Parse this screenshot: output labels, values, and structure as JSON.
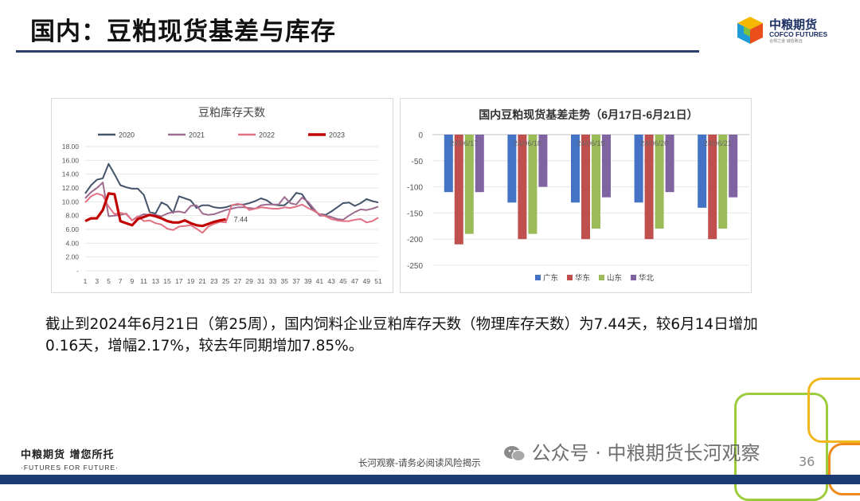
{
  "header": {
    "title": "国内：豆粕现货基差与库存",
    "logo_cn": "中粮期货",
    "logo_en": "COFCO FUTURES",
    "logo_sub": "合规之道  诚信致远"
  },
  "chart_data": [
    {
      "type": "line",
      "title": "豆粕库存天数",
      "xlabel": "",
      "ylabel": "",
      "ylim": [
        0,
        18
      ],
      "y_ticks": [
        "-",
        "2.00",
        "4.00",
        "6.00",
        "8.00",
        "10.00",
        "12.00",
        "14.00",
        "16.00",
        "18.00"
      ],
      "x_ticks": [
        "1",
        "3",
        "5",
        "7",
        "9",
        "11",
        "13",
        "15",
        "17",
        "19",
        "21",
        "23",
        "25",
        "27",
        "29",
        "31",
        "33",
        "35",
        "37",
        "39",
        "41",
        "43",
        "45",
        "47",
        "49",
        "51"
      ],
      "grid": true,
      "legend_position": "top",
      "annotation": "7.44",
      "series": [
        {
          "name": "2020",
          "color": "#44546a",
          "values": [
            11.2,
            12.4,
            13.2,
            13.4,
            15.5,
            14.0,
            12.4,
            12.1,
            11.9,
            11.9,
            11.0,
            8.5,
            8.3,
            9.9,
            9.5,
            8.4,
            10.8,
            10.5,
            10.2,
            9.1,
            9.5,
            9.5,
            9.2,
            9.1,
            9.2,
            9.5,
            9.6,
            9.6,
            9.8,
            10.1,
            10.5,
            10.2,
            9.6,
            9.5,
            9.5,
            10.2,
            11.3,
            11.1,
            9.8,
            8.7,
            8.2,
            8.1,
            8.6,
            9.2,
            9.8,
            9.9,
            9.4,
            9.8,
            10.4,
            10.1,
            9.9
          ]
        },
        {
          "name": "2021",
          "color": "#9e6b8f",
          "values": [
            10.5,
            11.4,
            12.0,
            12.8,
            7.9,
            8.0,
            8.1,
            8.3,
            7.3,
            7.8,
            8.2,
            8.1,
            8.1,
            7.9,
            8.3,
            8.5,
            8.6,
            8.4,
            9.4,
            9.5,
            8.3,
            8.1,
            8.2,
            8.5,
            8.8,
            9.0,
            9.2,
            9.2,
            9.1,
            9.0,
            9.5,
            9.6,
            9.6,
            9.6,
            10.7,
            9.8,
            9.6,
            10.6,
            10.0,
            9.0,
            8.0,
            8.0,
            7.8,
            7.5,
            7.4,
            8.0,
            8.5,
            8.9,
            8.8,
            9.0,
            9.3
          ]
        },
        {
          "name": "2022",
          "color": "#e27184",
          "values": [
            9.9,
            10.8,
            11.2,
            10.9,
            9.3,
            8.2,
            8.4,
            8.2,
            7.3,
            7.9,
            7.2,
            7.3,
            6.9,
            6.7,
            6.1,
            5.9,
            6.4,
            6.5,
            6.6,
            6.1,
            5.5,
            6.4,
            6.8,
            7.1,
            7.0,
            9.5,
            9.7,
            9.5,
            8.8,
            9.0,
            9.2,
            9.1,
            9.0,
            9.0,
            9.2,
            9.1,
            9.3,
            9.6,
            9.1,
            8.7,
            8.2,
            7.9,
            7.5,
            7.3,
            7.2,
            7.2,
            7.4,
            7.5,
            7.0,
            7.2,
            7.7
          ]
        },
        {
          "name": "2023",
          "color": "#c00000",
          "values": [
            7.2,
            7.6,
            7.6,
            8.8,
            11.2,
            11.1,
            7.2,
            6.9,
            6.6,
            7.5,
            7.8,
            8.1,
            7.9,
            7.6,
            7.2,
            7.0,
            7.0,
            7.3,
            6.9,
            6.6,
            6.5,
            6.8,
            7.1,
            7.3,
            7.44
          ]
        }
      ]
    },
    {
      "type": "bar",
      "title": "国内豆粕现货基差走势（6月17日-6月21日）",
      "categories": [
        "24/06/17",
        "24/06/18",
        "24/06/19",
        "24/06/20",
        "24/06/21"
      ],
      "ylim": [
        -250,
        0
      ],
      "y_ticks": [
        "-250",
        "-200",
        "-150",
        "-100",
        "-50",
        "0"
      ],
      "grid": true,
      "legend_position": "bottom",
      "series": [
        {
          "name": "广东",
          "color": "#4472c4",
          "values": [
            -110,
            -130,
            -130,
            -130,
            -140
          ]
        },
        {
          "name": "华东",
          "color": "#c0504d",
          "values": [
            -210,
            -200,
            -200,
            -200,
            -200
          ]
        },
        {
          "name": "山东",
          "color": "#9bbb59",
          "values": [
            -190,
            -190,
            -180,
            -180,
            -180
          ]
        },
        {
          "name": "华北",
          "color": "#8064a2",
          "values": [
            -110,
            -100,
            -120,
            -110,
            -120
          ]
        }
      ]
    }
  ],
  "body": {
    "paragraph": "截止到2024年6月21日（第25周），国内饲料企业豆粕库存天数（物理库存天数）为7.44天，较6月14日增加0.16天，增幅2.17%，较去年同期增加7.85%。"
  },
  "footer": {
    "slogan_cn": "中粮期货  增您所托",
    "slogan_en": "·FUTURES FOR FUTURE·",
    "center_text": "长河观察-请务必阅读风险揭示",
    "watermark": "公众号 · 中粮期货长河观察",
    "page_number": "36"
  },
  "colors": {
    "title_rule": "#2a3f6b",
    "footer_bar": "#1e3c74"
  }
}
